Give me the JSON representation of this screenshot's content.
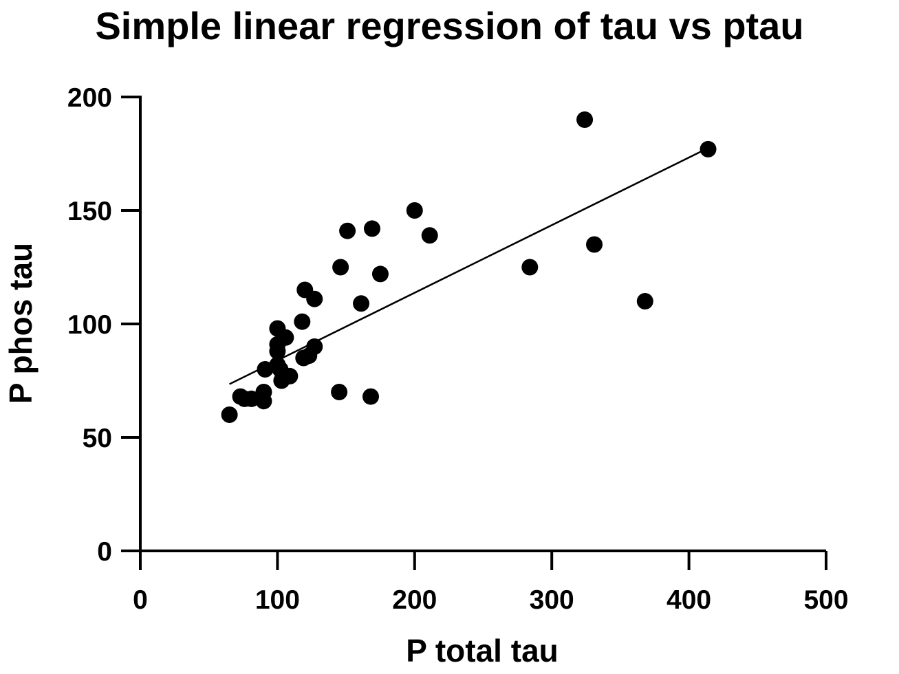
{
  "chart_data": {
    "type": "scatter",
    "title": "Simple linear regression of tau vs ptau",
    "xlabel": "P total tau",
    "ylabel": "P phos tau",
    "xlim": [
      0,
      500
    ],
    "ylim": [
      0,
      200
    ],
    "xticks": [
      0,
      100,
      200,
      300,
      400,
      500
    ],
    "yticks": [
      0,
      50,
      100,
      150,
      200
    ],
    "grid": false,
    "legend": "none",
    "marker_color": "#000000",
    "points": [
      {
        "x": 65,
        "y": 60
      },
      {
        "x": 73,
        "y": 68
      },
      {
        "x": 76,
        "y": 67
      },
      {
        "x": 81,
        "y": 67
      },
      {
        "x": 90,
        "y": 66
      },
      {
        "x": 90,
        "y": 70
      },
      {
        "x": 91,
        "y": 80
      },
      {
        "x": 100,
        "y": 98
      },
      {
        "x": 100,
        "y": 91
      },
      {
        "x": 100,
        "y": 88
      },
      {
        "x": 100,
        "y": 82
      },
      {
        "x": 102,
        "y": 80
      },
      {
        "x": 103,
        "y": 75
      },
      {
        "x": 106,
        "y": 94
      },
      {
        "x": 109,
        "y": 77
      },
      {
        "x": 118,
        "y": 101
      },
      {
        "x": 119,
        "y": 85
      },
      {
        "x": 120,
        "y": 115
      },
      {
        "x": 123,
        "y": 86
      },
      {
        "x": 127,
        "y": 90
      },
      {
        "x": 127,
        "y": 111
      },
      {
        "x": 145,
        "y": 70
      },
      {
        "x": 146,
        "y": 125
      },
      {
        "x": 151,
        "y": 141
      },
      {
        "x": 161,
        "y": 109
      },
      {
        "x": 168,
        "y": 68
      },
      {
        "x": 169,
        "y": 142
      },
      {
        "x": 175,
        "y": 122
      },
      {
        "x": 200,
        "y": 150
      },
      {
        "x": 211,
        "y": 139
      },
      {
        "x": 284,
        "y": 125
      },
      {
        "x": 324,
        "y": 190
      },
      {
        "x": 331,
        "y": 135
      },
      {
        "x": 368,
        "y": 110
      },
      {
        "x": 414,
        "y": 177
      }
    ],
    "regression_line": {
      "x": [
        65,
        414
      ],
      "y": [
        73.5,
        177.5
      ]
    }
  }
}
